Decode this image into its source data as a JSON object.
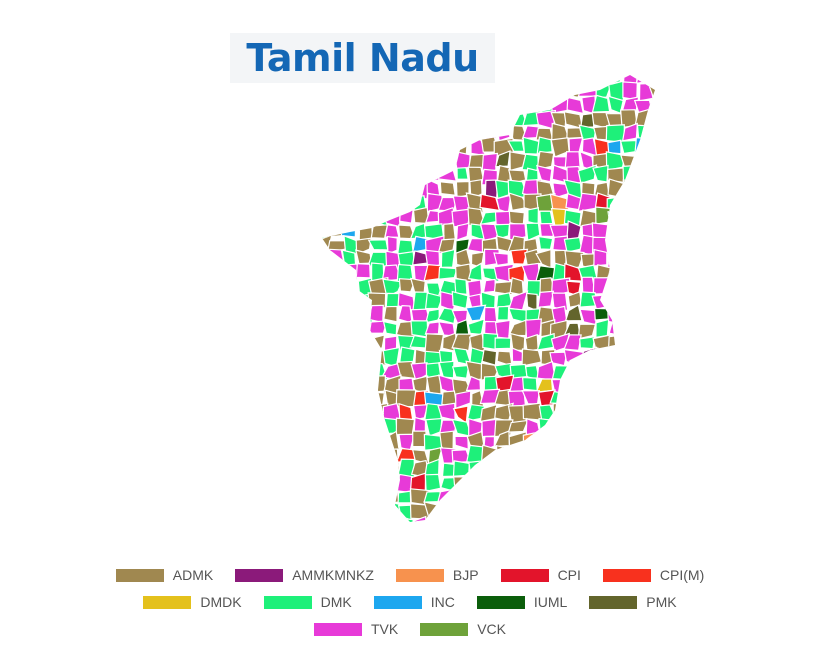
{
  "title": "Tamil Nadu",
  "legend": [
    {
      "name": "ADMK",
      "color": "#a08850"
    },
    {
      "name": "AMMKMNKZ",
      "color": "#8b1a7a"
    },
    {
      "name": "BJP",
      "color": "#f7924e"
    },
    {
      "name": "CPI",
      "color": "#e3142b"
    },
    {
      "name": "CPI(M)",
      "color": "#f8311e"
    },
    {
      "name": "DMDK",
      "color": "#e4c11c"
    },
    {
      "name": "DMK",
      "color": "#1ef07a"
    },
    {
      "name": "INC",
      "color": "#1da7ef"
    },
    {
      "name": "IUML",
      "color": "#0b5e0b"
    },
    {
      "name": "PMK",
      "color": "#63652c"
    },
    {
      "name": "TVK",
      "color": "#e73ad8"
    },
    {
      "name": "VCK",
      "color": "#6ea23a"
    }
  ]
}
